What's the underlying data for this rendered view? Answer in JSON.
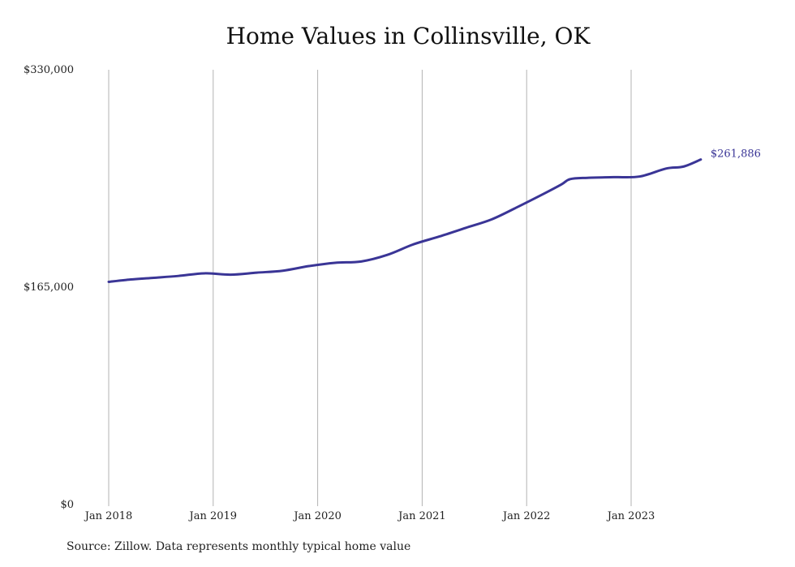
{
  "chart_data": {
    "type": "line",
    "title": "Home Values in Collinsville, OK",
    "source": "Source: Zillow. Data represents monthly typical home value",
    "xlabel": "",
    "ylabel": "",
    "x_tick_labels": [
      "Jan 2018",
      "Jan 2019",
      "Jan 2020",
      "Jan 2021",
      "Jan 2022",
      "Jan 2023"
    ],
    "y_tick_labels": [
      "$330,000",
      "$165,000",
      "$0"
    ],
    "ylim": [
      0,
      330000
    ],
    "xlim": [
      "2018-01",
      "2023-09"
    ],
    "grid": "vertical",
    "line_color": "#3a3596",
    "end_label": "$261,886",
    "series": [
      {
        "name": "",
        "points": [
          [
            "2018-01",
            169000
          ],
          [
            "2018-03",
            170500
          ],
          [
            "2018-06",
            172000
          ],
          [
            "2018-09",
            173500
          ],
          [
            "2018-12",
            175500
          ],
          [
            "2019-03",
            174500
          ],
          [
            "2019-06",
            176000
          ],
          [
            "2019-09",
            177500
          ],
          [
            "2019-12",
            181000
          ],
          [
            "2020-03",
            183500
          ],
          [
            "2020-06",
            184500
          ],
          [
            "2020-09",
            189500
          ],
          [
            "2020-12",
            197500
          ],
          [
            "2021-03",
            203500
          ],
          [
            "2021-06",
            210000
          ],
          [
            "2021-09",
            216500
          ],
          [
            "2021-12",
            226000
          ],
          [
            "2022-03",
            236000
          ],
          [
            "2022-05",
            243000
          ],
          [
            "2022-06",
            247000
          ],
          [
            "2022-08",
            248000
          ],
          [
            "2022-11",
            248500
          ],
          [
            "2023-02",
            249000
          ],
          [
            "2023-05",
            255000
          ],
          [
            "2023-07",
            256500
          ],
          [
            "2023-09",
            261886
          ]
        ]
      }
    ]
  }
}
